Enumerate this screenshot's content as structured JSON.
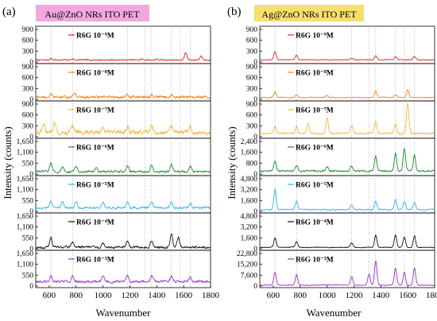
{
  "figure": {
    "panels": [
      {
        "letter": "(a)",
        "title": "Au@ZnO NRs ITO PET",
        "title_bg": "#f2a7de"
      },
      {
        "letter": "(b)",
        "title": "Ag@ZnO NRs ITO PET",
        "title_bg": "#f7df6e"
      }
    ]
  },
  "chart_data": [
    {
      "type": "line",
      "panel": "(a)",
      "title": "Au@ZnO NRs ITO PET",
      "xlabel": "Wavenumber",
      "ylabel": "Intensity (counts)",
      "xlim": [
        500,
        1800
      ],
      "xticks": [
        600,
        800,
        1000,
        1200,
        1400,
        1600,
        1800
      ],
      "reference_lines": [
        613,
        773,
        1183,
        1312,
        1362,
        1509,
        1575,
        1650
      ],
      "series": [
        {
          "name": "R6G 10⁻⁹M",
          "color": "#e8202a",
          "ylim": [
            0,
            900
          ],
          "yticks": [
            0,
            300,
            600,
            900
          ],
          "baseline": 55,
          "noise": 18,
          "peaks": [
            [
              613,
              40
            ],
            [
              773,
              30
            ],
            [
              1290,
              25
            ],
            [
              1400,
              30
            ],
            [
              1615,
              200
            ],
            [
              1730,
              110
            ]
          ]
        },
        {
          "name": "R6G 10⁻⁸M",
          "color": "#f0821e",
          "ylim": [
            0,
            900
          ],
          "yticks": [
            0,
            300,
            600,
            900
          ],
          "baseline": 60,
          "noise": 35,
          "peaks": [
            [
              613,
              70
            ],
            [
              790,
              120
            ],
            [
              1183,
              60
            ],
            [
              1362,
              50
            ],
            [
              1509,
              60
            ]
          ]
        },
        {
          "name": "R6G 10⁻⁷M",
          "color": "#f4b63a",
          "ylim": [
            0,
            900
          ],
          "yticks": [
            0,
            300,
            600,
            900
          ],
          "baseline": 120,
          "noise": 55,
          "peaks": [
            [
              560,
              220
            ],
            [
              640,
              250
            ],
            [
              773,
              180
            ],
            [
              1000,
              170
            ],
            [
              1183,
              160
            ],
            [
              1362,
              170
            ],
            [
              1509,
              180
            ],
            [
              1650,
              160
            ]
          ]
        },
        {
          "name": "R6G 10⁻⁶M",
          "color": "#1e8a2a",
          "ylim": [
            0,
            1650
          ],
          "yticks": [
            0,
            550,
            1100,
            1650
          ],
          "baseline": 120,
          "noise": 50,
          "peaks": [
            [
              613,
              430
            ],
            [
              700,
              220
            ],
            [
              800,
              260
            ],
            [
              950,
              240
            ],
            [
              1183,
              300
            ],
            [
              1362,
              320
            ],
            [
              1509,
              360
            ],
            [
              1650,
              300
            ]
          ]
        },
        {
          "name": "R6G 10⁻⁵M",
          "color": "#2bb3e6",
          "ylim": [
            0,
            1650
          ],
          "yticks": [
            0,
            550,
            1100,
            1650
          ],
          "baseline": 180,
          "noise": 50,
          "peaks": [
            [
              613,
              340
            ],
            [
              700,
              300
            ],
            [
              800,
              330
            ],
            [
              1000,
              280
            ],
            [
              1183,
              330
            ],
            [
              1362,
              300
            ],
            [
              1509,
              330
            ],
            [
              1650,
              250
            ]
          ]
        },
        {
          "name": "R6G 10⁻⁴M",
          "color": "#111111",
          "ylim": [
            0,
            1650
          ],
          "yticks": [
            0,
            550,
            1100,
            1650
          ],
          "baseline": 80,
          "noise": 60,
          "peaks": [
            [
              613,
              500
            ],
            [
              773,
              300
            ],
            [
              1000,
              240
            ],
            [
              1183,
              300
            ],
            [
              1362,
              330
            ],
            [
              1509,
              700
            ],
            [
              1560,
              520
            ]
          ]
        },
        {
          "name": "R6G 10⁻³M",
          "color": "#9b30d8",
          "ylim": [
            0,
            1650
          ],
          "yticks": [
            0,
            550,
            1100,
            1650
          ],
          "baseline": 230,
          "noise": 60,
          "peaks": [
            [
              613,
              320
            ],
            [
              773,
              300
            ],
            [
              1000,
              280
            ],
            [
              1183,
              340
            ],
            [
              1362,
              300
            ],
            [
              1509,
              300
            ],
            [
              1650,
              260
            ]
          ]
        }
      ]
    },
    {
      "type": "line",
      "panel": "(b)",
      "title": "Ag@ZnO NRs ITO PET",
      "xlabel": "Wavenumber",
      "ylabel": "Intensity (counts)",
      "xlim": [
        500,
        1800
      ],
      "xticks": [
        600,
        800,
        1000,
        1200,
        1400,
        1600,
        1800
      ],
      "reference_lines": [
        613,
        773,
        1183,
        1312,
        1362,
        1509,
        1575,
        1650
      ],
      "series": [
        {
          "name": "R6G 10⁻⁹M",
          "color": "#e8202a",
          "ylim": [
            0,
            900
          ],
          "yticks": [
            0,
            300,
            600,
            900
          ],
          "baseline": 60,
          "noise": 12,
          "peaks": [
            [
              613,
              240
            ],
            [
              773,
              130
            ],
            [
              1183,
              40
            ],
            [
              1362,
              100
            ],
            [
              1509,
              90
            ],
            [
              1650,
              90
            ]
          ]
        },
        {
          "name": "R6G 10⁻⁸M",
          "color": "#f0821e",
          "ylim": [
            0,
            900
          ],
          "yticks": [
            0,
            300,
            600,
            900
          ],
          "baseline": 50,
          "noise": 12,
          "peaks": [
            [
              613,
              150
            ],
            [
              773,
              70
            ],
            [
              1000,
              60
            ],
            [
              1362,
              170
            ],
            [
              1509,
              80
            ],
            [
              1600,
              220
            ]
          ]
        },
        {
          "name": "R6G 10⁻⁷M",
          "color": "#f4b63a",
          "ylim": [
            0,
            900
          ],
          "yticks": [
            0,
            300,
            600,
            900
          ],
          "baseline": 90,
          "noise": 20,
          "peaks": [
            [
              613,
              200
            ],
            [
              773,
              180
            ],
            [
              860,
              270
            ],
            [
              1000,
              420
            ],
            [
              1183,
              230
            ],
            [
              1362,
              330
            ],
            [
              1509,
              260
            ],
            [
              1600,
              860
            ]
          ]
        },
        {
          "name": "R6G 10⁻⁶M",
          "color": "#1e8a2a",
          "ylim": [
            0,
            2400
          ],
          "yticks": [
            0,
            800,
            1600,
            2400
          ],
          "baseline": 220,
          "noise": 60,
          "peaks": [
            [
              613,
              800
            ],
            [
              773,
              420
            ],
            [
              1000,
              300
            ],
            [
              1183,
              360
            ],
            [
              1362,
              1100
            ],
            [
              1509,
              1300
            ],
            [
              1575,
              1600
            ],
            [
              1650,
              1200
            ]
          ]
        },
        {
          "name": "R6G 10⁻⁵M",
          "color": "#2bb3e6",
          "ylim": [
            0,
            4800
          ],
          "yticks": [
            0,
            1600,
            3200,
            4800
          ],
          "baseline": 250,
          "noise": 80,
          "peaks": [
            [
              613,
              3000
            ],
            [
              773,
              1300
            ],
            [
              1183,
              700
            ],
            [
              1362,
              1300
            ],
            [
              1509,
              1500
            ],
            [
              1575,
              1200
            ],
            [
              1650,
              1100
            ]
          ]
        },
        {
          "name": "R6G 10⁻⁴M",
          "color": "#111111",
          "ylim": [
            0,
            4800
          ],
          "yticks": [
            0,
            1600,
            3200,
            4800
          ],
          "baseline": 200,
          "noise": 60,
          "peaks": [
            [
              613,
              1400
            ],
            [
              773,
              900
            ],
            [
              1183,
              700
            ],
            [
              1362,
              1800
            ],
            [
              1509,
              1900
            ],
            [
              1575,
              1500
            ],
            [
              1650,
              1700
            ]
          ]
        },
        {
          "name": "R6G 10⁻³M",
          "color": "#9b30d8",
          "ylim": [
            0,
            22800
          ],
          "yticks": [
            0,
            7600,
            15200,
            22800
          ],
          "baseline": 600,
          "noise": 250,
          "peaks": [
            [
              613,
              9000
            ],
            [
              773,
              7500
            ],
            [
              1183,
              6000
            ],
            [
              1312,
              8000
            ],
            [
              1362,
              17000
            ],
            [
              1509,
              12000
            ],
            [
              1575,
              9000
            ],
            [
              1650,
              12000
            ]
          ]
        }
      ]
    }
  ]
}
